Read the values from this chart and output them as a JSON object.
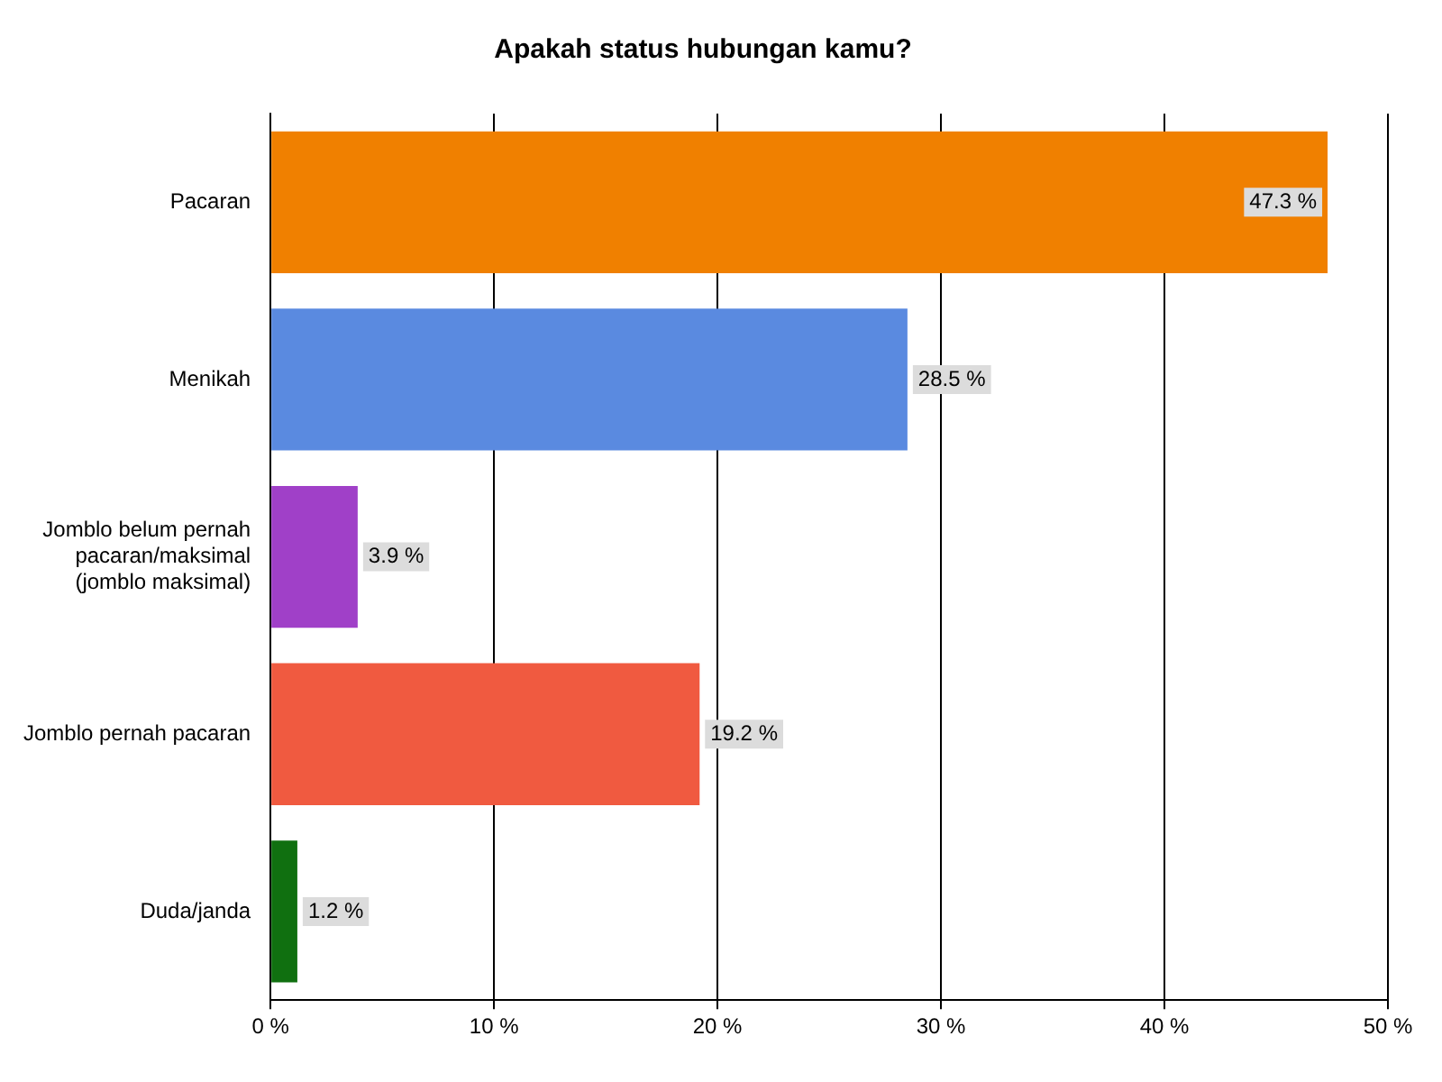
{
  "chart_data": {
    "type": "bar",
    "orientation": "horizontal",
    "title": "Apakah status hubungan kamu?",
    "categories": [
      "Pacaran",
      "Menikah",
      "Jomblo belum pernah pacaran/maksimal (jomblo maksimal)",
      "Jomblo pernah pacaran",
      "Duda/janda"
    ],
    "values": [
      47.3,
      28.5,
      3.9,
      19.2,
      1.2
    ],
    "colors": [
      "#f08000",
      "#5a8ae0",
      "#a040c8",
      "#f05a40",
      "#107010"
    ],
    "value_labels": [
      "47.3 %",
      "28.5 %",
      "3.9 %",
      "19.2 %",
      "1.2 %"
    ],
    "xlim": [
      0,
      50
    ],
    "xticks": [
      {
        "value": 0,
        "label": "0 %"
      },
      {
        "value": 10,
        "label": "10 %"
      },
      {
        "value": 20,
        "label": "20 %"
      },
      {
        "value": 30,
        "label": "30 %"
      },
      {
        "value": 40,
        "label": "40 %"
      },
      {
        "value": 50,
        "label": "50 %"
      }
    ],
    "grid": "x",
    "legend": false
  }
}
